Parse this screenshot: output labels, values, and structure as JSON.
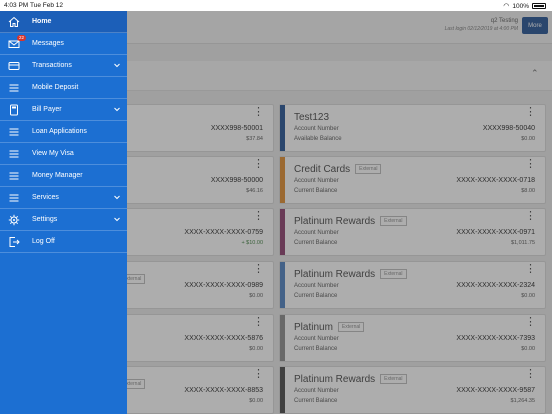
{
  "status_bar": {
    "time": "4:03 PM",
    "date": "Tue Feb 12",
    "battery": "100%"
  },
  "header": {
    "user_name": "q2 Testing",
    "last_login": "Last login 02/12/2019 at 4:00 PM",
    "more_label": "More"
  },
  "menu": {
    "items": [
      {
        "label": "Home",
        "icon": "home-icon"
      },
      {
        "label": "Messages",
        "icon": "mail-icon",
        "badge": "22"
      },
      {
        "label": "Transactions",
        "icon": "credit-card-icon"
      },
      {
        "label": "Mobile Deposit",
        "icon": "list-icon"
      },
      {
        "label": "Bill Payer",
        "icon": "calculator-icon"
      },
      {
        "label": "Loan Applications",
        "icon": "list-icon"
      },
      {
        "label": "View My Visa",
        "icon": "list-icon"
      },
      {
        "label": "Money Manager",
        "icon": "list-icon"
      },
      {
        "label": "Services",
        "icon": "list-icon"
      },
      {
        "label": "Settings",
        "icon": "gear-icon"
      },
      {
        "label": "Log Off",
        "icon": "logout-icon"
      }
    ]
  },
  "left_cards": [
    {
      "number": "XXXX998-50001",
      "balance": "$37.84"
    },
    {
      "number": "XXXX998-50000",
      "balance": "$46.16"
    },
    {
      "number": "XXXX-XXXX-XXXX-0759",
      "balance": "+ $10.00"
    },
    {
      "number": "XXXX-XXXX-XXXX-0989",
      "balance": "$0.00"
    },
    {
      "number": "XXXX-XXXX-XXXX-5876",
      "balance": "$0.00"
    },
    {
      "number": "XXXX-XXXX-XXXX-8853",
      "balance": "$0.00"
    }
  ],
  "external_label": "External",
  "right_cards": [
    {
      "name": "Test123",
      "label1": "Account Number",
      "label2": "Available Balance",
      "number": "XXXX998-50040",
      "balance": "$0.00",
      "color": "#1e4e92"
    },
    {
      "name": "Credit Cards",
      "label1": "Account Number",
      "label2": "Current Balance",
      "number": "XXXX-XXXX-XXXX-0718",
      "balance": "$8.00",
      "color": "#e08a2a"
    },
    {
      "name": "Platinum Rewards",
      "label1": "Account Number",
      "label2": "Current Balance",
      "number": "XXXX-XXXX-XXXX-0971",
      "balance": "$1,011.75",
      "color": "#8a3a6a"
    },
    {
      "name": "Platinum Rewards",
      "label1": "Account Number",
      "label2": "Current Balance",
      "number": "XXXX-XXXX-XXXX-2324",
      "balance": "$0.00",
      "color": "#4a7fc0"
    },
    {
      "name": "Platinum",
      "label1": "Account Number",
      "label2": "Current Balance",
      "number": "XXXX-XXXX-XXXX-7393",
      "balance": "$0.00",
      "color": "#888888"
    },
    {
      "name": "Platinum Rewards",
      "label1": "Account Number",
      "label2": "Current Balance",
      "number": "XXXX-XXXX-XXXX-9587",
      "balance": "$1,264.35",
      "color": "#444444"
    }
  ]
}
